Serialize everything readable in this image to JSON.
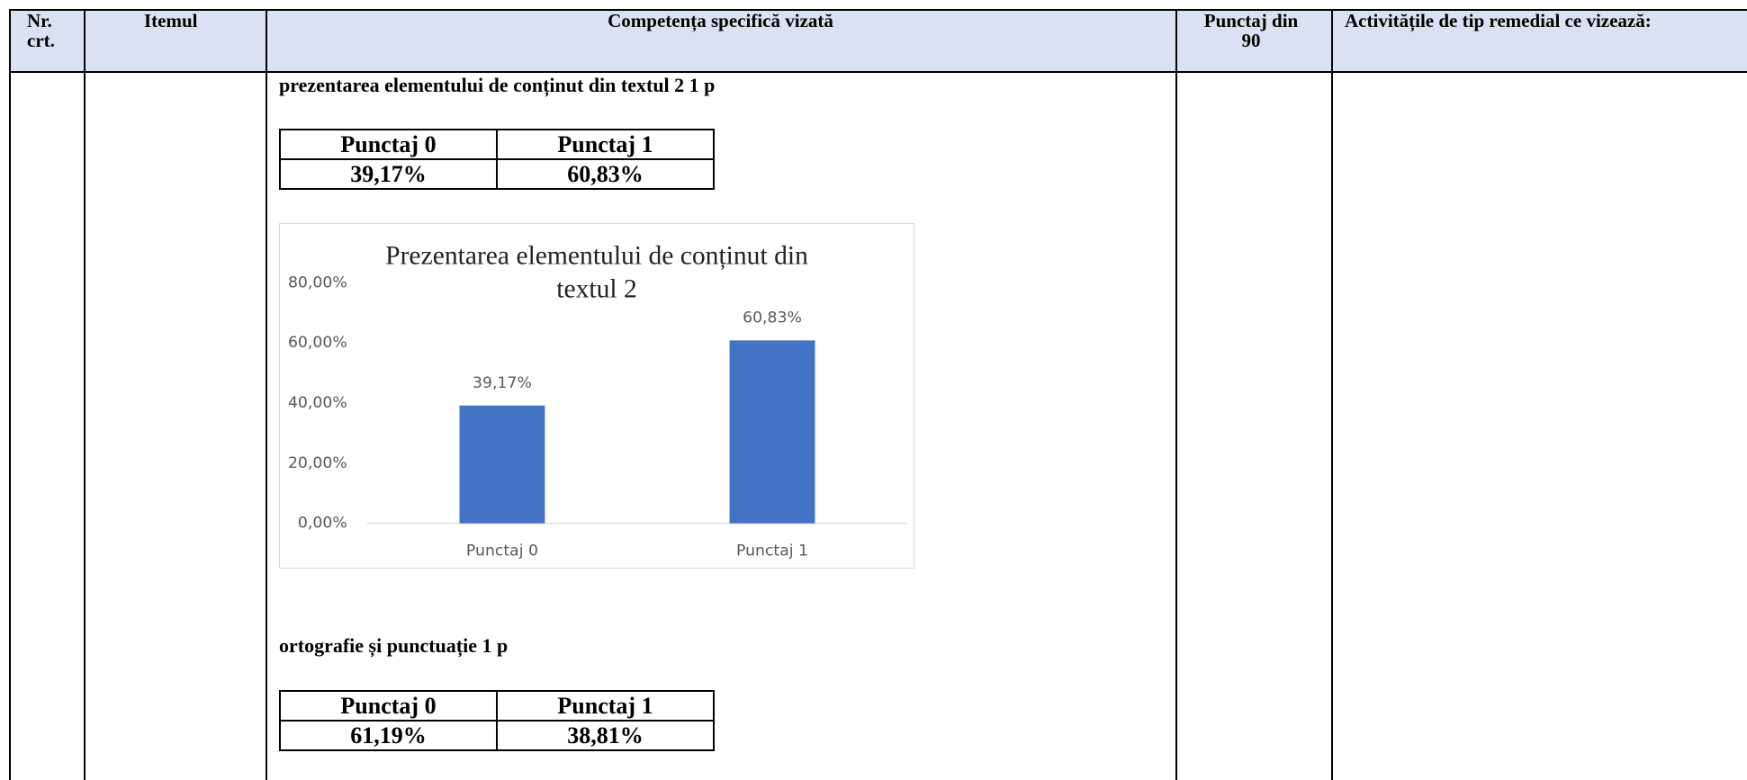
{
  "header": [
    "Nr. crt.",
    "Itemul",
    "Competența specifică vizată",
    "Punctaj din 90",
    "Activitățile de tip remedial ce vizează:"
  ],
  "sections": [
    {
      "heading": "prezentarea elementului de conținut din textul 2 1 p",
      "table": {
        "header": [
          "Punctaj 0",
          "Punctaj 1"
        ],
        "row": [
          "39,17%",
          "60,83%"
        ]
      }
    },
    {
      "heading": "ortografie și punctuație 1 p",
      "table": {
        "header": [
          "Punctaj 0",
          "Punctaj 1"
        ],
        "row": [
          "61,19%",
          "38,81%"
        ]
      }
    }
  ],
  "chart_data": {
    "type": "bar",
    "title": "Prezentarea elementului de conținut din textul 2",
    "categories": [
      "Punctaj 0",
      "Punctaj 1"
    ],
    "values": [
      39.17,
      60.83
    ],
    "value_labels": [
      "39,17%",
      "60,83%"
    ],
    "color": "#4472c4",
    "ylim": [
      0,
      80
    ],
    "yticks": [
      {
        "value": 0,
        "label": "0,00%"
      },
      {
        "value": 20,
        "label": "20,00%"
      },
      {
        "value": 40,
        "label": "40,00%"
      },
      {
        "value": 60,
        "label": "60,00%"
      },
      {
        "value": 80,
        "label": "80,00%"
      }
    ],
    "grid": false
  }
}
